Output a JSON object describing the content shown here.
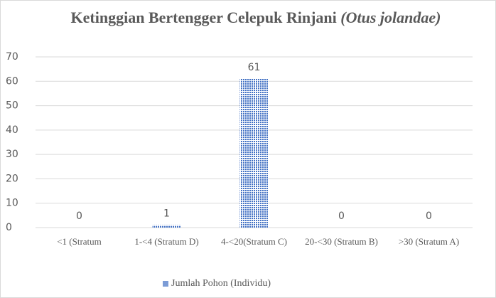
{
  "chart_data": {
    "type": "bar",
    "title": {
      "text": "Ketinggian Bertengger Celepuk Rinjani",
      "species": "(Otus jolandae)"
    },
    "categories": [
      "<1 (Stratum",
      "1-<4 (Stratum D)",
      "4-<20(Stratum C)",
      "20-<30 (Stratum B)",
      ">30 (Stratum A)"
    ],
    "series": [
      {
        "name": "Jumlah Pohon (Individu)",
        "color": "#4472c4",
        "values": [
          0,
          1,
          61,
          0,
          0
        ]
      }
    ],
    "ylim": [
      0,
      70
    ],
    "yticks": [
      0,
      10,
      20,
      30,
      40,
      50,
      60,
      70
    ],
    "grid": true,
    "legend": "bottom"
  }
}
